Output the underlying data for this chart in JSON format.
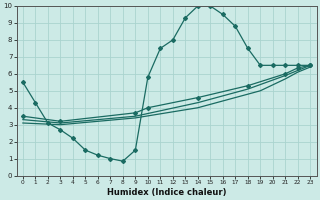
{
  "xlabel": "Humidex (Indice chaleur)",
  "bg_color": "#cceae6",
  "grid_color": "#aad4cf",
  "line_color": "#1a6b62",
  "xlim": [
    -0.5,
    23.5
  ],
  "ylim": [
    0,
    10
  ],
  "line1_x": [
    0,
    1,
    2,
    3,
    4,
    5,
    6,
    7,
    8,
    9,
    10,
    11,
    12,
    13,
    14,
    15,
    16,
    17,
    18,
    19,
    20,
    21,
    22,
    23
  ],
  "line1_y": [
    5.5,
    4.3,
    3.1,
    2.7,
    2.2,
    1.5,
    1.2,
    1.0,
    0.85,
    1.5,
    5.8,
    7.5,
    8.0,
    9.3,
    10.0,
    10.0,
    9.5,
    8.8,
    7.5,
    6.5,
    6.5,
    6.5,
    6.5,
    6.5
  ],
  "line2_x": [
    0,
    3,
    9,
    10,
    14,
    18,
    21,
    22,
    23
  ],
  "line2_y": [
    3.5,
    3.2,
    3.7,
    4.0,
    4.6,
    5.3,
    6.0,
    6.35,
    6.5
  ],
  "line3_x": [
    0,
    3,
    9,
    14,
    18,
    21,
    22,
    23
  ],
  "line3_y": [
    3.3,
    3.1,
    3.5,
    4.3,
    5.1,
    5.9,
    6.2,
    6.5
  ],
  "line4_x": [
    0,
    3,
    9,
    14,
    19,
    21,
    22,
    23
  ],
  "line4_y": [
    3.1,
    3.0,
    3.4,
    4.0,
    5.0,
    5.7,
    6.1,
    6.4
  ]
}
